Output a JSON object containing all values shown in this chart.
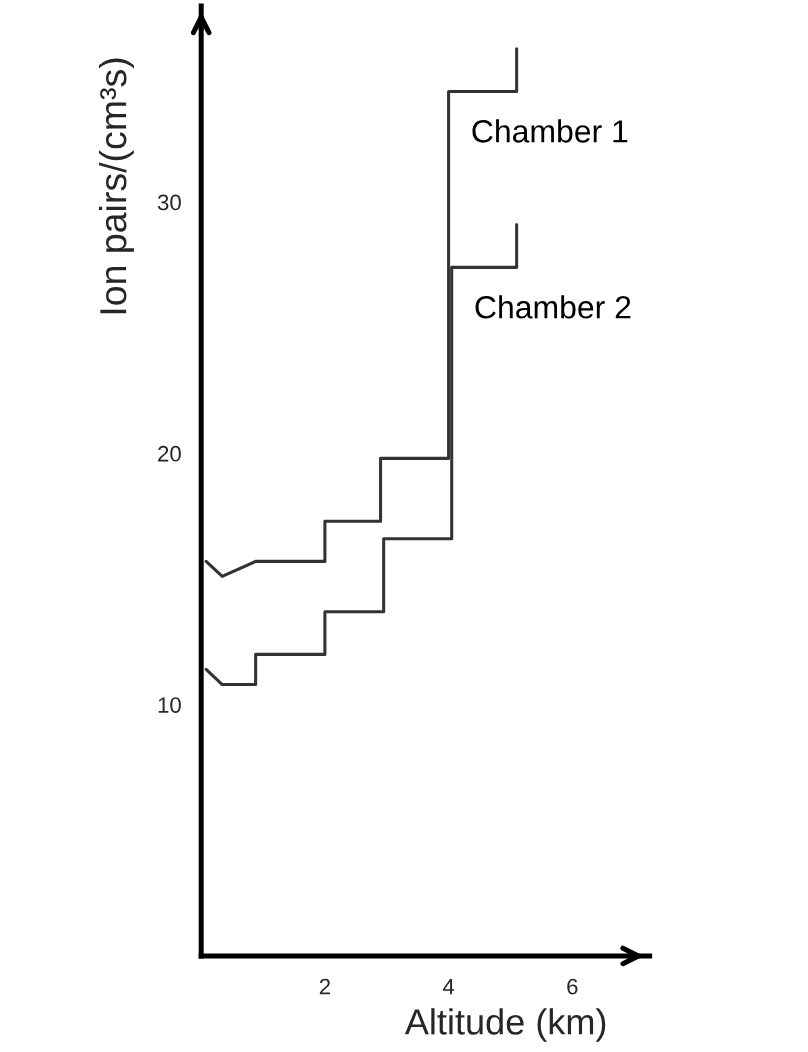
{
  "chart_data": {
    "type": "line",
    "xlabel": "Altitude (km)",
    "ylabel": "Ion pairs/(cm³s)",
    "xlim": [
      0,
      7.25
    ],
    "ylim": [
      0,
      37.8
    ],
    "xticks": [
      2,
      4,
      6
    ],
    "yticks": [
      10,
      20,
      30
    ],
    "series": [
      {
        "name": "Chamber 1",
        "color": "#333333",
        "x": [
          0.08,
          0.34,
          0.88,
          2.0,
          2.0,
          2.9,
          2.9,
          4.0,
          4.0,
          5.1,
          5.1
        ],
        "values": [
          15.7,
          15.1,
          15.7,
          15.7,
          17.3,
          17.3,
          19.8,
          19.8,
          34.4,
          34.4,
          36.1
        ]
      },
      {
        "name": "Chamber 2",
        "color": "#333333",
        "x": [
          0.08,
          0.34,
          0.88,
          0.88,
          2.0,
          2.0,
          2.95,
          2.95,
          4.05,
          4.05,
          5.1,
          5.1
        ],
        "values": [
          11.4,
          10.8,
          10.8,
          12.0,
          12.0,
          13.7,
          13.7,
          16.6,
          16.6,
          27.4,
          27.4,
          29.1
        ]
      }
    ]
  }
}
